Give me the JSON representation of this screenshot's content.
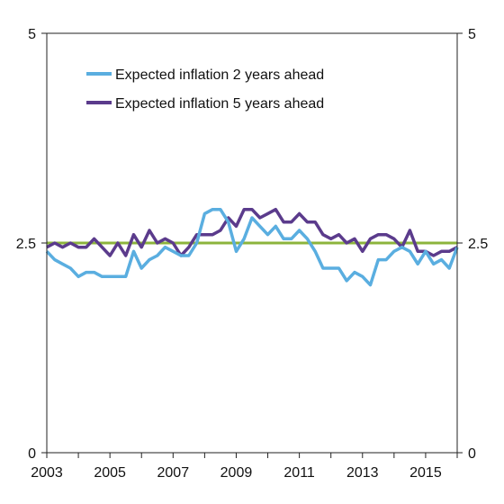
{
  "chart_data": {
    "type": "line",
    "title": "",
    "xlabel": "",
    "ylabel": "",
    "xlim": [
      2003,
      2016
    ],
    "ylim": [
      0,
      5
    ],
    "x_ticks": [
      2003,
      2005,
      2007,
      2009,
      2011,
      2013,
      2015
    ],
    "x_tick_labels": [
      "2003",
      "2005",
      "2007",
      "2009",
      "2011",
      "2013",
      "2015"
    ],
    "y_ticks": [
      0,
      2.5,
      5
    ],
    "y_tick_labels": [
      "0",
      "2.5",
      "5"
    ],
    "right_y_tick_labels": [
      "0",
      "2.5",
      "5"
    ],
    "grid": false,
    "legend_position": "top-left",
    "reference_line": {
      "value": 2.5,
      "color": "#8cb43c"
    },
    "x": [
      2003.0,
      2003.25,
      2003.5,
      2003.75,
      2004.0,
      2004.25,
      2004.5,
      2004.75,
      2005.0,
      2005.25,
      2005.5,
      2005.75,
      2006.0,
      2006.25,
      2006.5,
      2006.75,
      2007.0,
      2007.25,
      2007.5,
      2007.75,
      2008.0,
      2008.25,
      2008.5,
      2008.75,
      2009.0,
      2009.25,
      2009.5,
      2009.75,
      2010.0,
      2010.25,
      2010.5,
      2010.75,
      2011.0,
      2011.25,
      2011.5,
      2011.75,
      2012.0,
      2012.25,
      2012.5,
      2012.75,
      2013.0,
      2013.25,
      2013.5,
      2013.75,
      2014.0,
      2014.25,
      2014.5,
      2014.75,
      2015.0,
      2015.25,
      2015.5,
      2015.75,
      2016.0
    ],
    "series": [
      {
        "name": "Expected inflation 2 years ahead",
        "color": "#5aaee0",
        "values": [
          2.4,
          2.3,
          2.25,
          2.2,
          2.1,
          2.15,
          2.15,
          2.1,
          2.1,
          2.1,
          2.1,
          2.4,
          2.2,
          2.3,
          2.35,
          2.45,
          2.4,
          2.35,
          2.35,
          2.5,
          2.85,
          2.9,
          2.9,
          2.75,
          2.4,
          2.55,
          2.8,
          2.7,
          2.6,
          2.7,
          2.55,
          2.55,
          2.65,
          2.55,
          2.4,
          2.2,
          2.2,
          2.2,
          2.05,
          2.15,
          2.1,
          2.0,
          2.3,
          2.3,
          2.4,
          2.45,
          2.4,
          2.25,
          2.4,
          2.25,
          2.3,
          2.2,
          2.45
        ]
      },
      {
        "name": "Expected inflation 5 years ahead",
        "color": "#5b3b8c",
        "values": [
          2.45,
          2.5,
          2.45,
          2.5,
          2.45,
          2.45,
          2.55,
          2.45,
          2.35,
          2.5,
          2.35,
          2.6,
          2.45,
          2.65,
          2.5,
          2.55,
          2.5,
          2.35,
          2.45,
          2.6,
          2.6,
          2.6,
          2.65,
          2.8,
          2.7,
          2.9,
          2.9,
          2.8,
          2.85,
          2.9,
          2.75,
          2.75,
          2.85,
          2.75,
          2.75,
          2.6,
          2.55,
          2.6,
          2.5,
          2.55,
          2.4,
          2.55,
          2.6,
          2.6,
          2.55,
          2.45,
          2.65,
          2.4,
          2.4,
          2.35,
          2.4,
          2.4,
          2.45
        ]
      }
    ]
  }
}
